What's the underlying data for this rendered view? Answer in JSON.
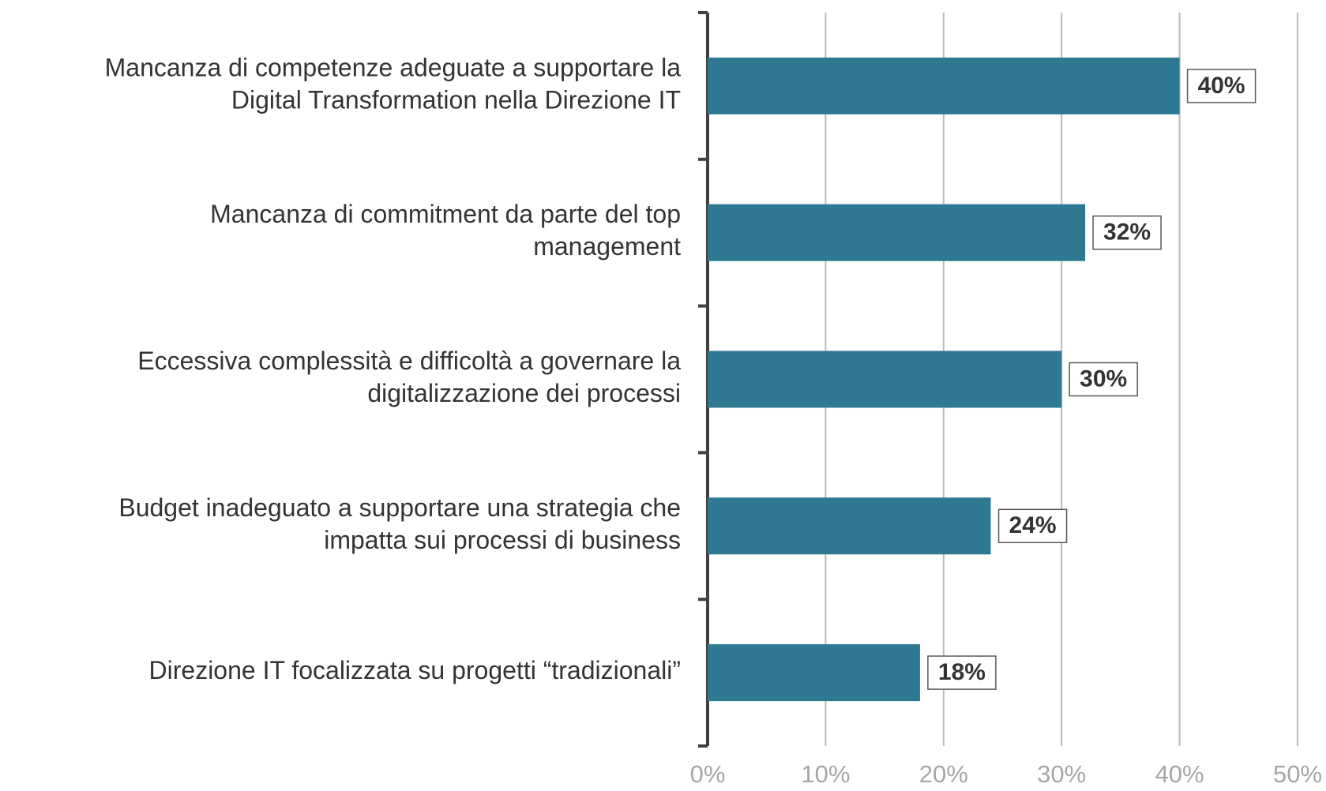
{
  "chart_data": {
    "type": "barh",
    "categories": [
      "Mancanza di competenze adeguate a supportare la\nDigital Transformation nella Direzione IT",
      "Mancanza di commitment da parte del top\nmanagement",
      "Eccessiva complessità e difficoltà a governare la\ndigitalizzazione dei processi",
      "Budget inadeguato a supportare una strategia che\nimpatta sui processi di business",
      "Direzione IT focalizzata su progetti “tradizionali”"
    ],
    "values": [
      40,
      32,
      30,
      24,
      18
    ],
    "value_labels": [
      "40%",
      "32%",
      "30%",
      "24%",
      "18%"
    ],
    "color": "#2e7891",
    "xlim": [
      0,
      50
    ],
    "xticks": [
      {
        "value": 0,
        "label": "0%"
      },
      {
        "value": 10,
        "label": "10%"
      },
      {
        "value": 20,
        "label": "20%"
      },
      {
        "value": 30,
        "label": "30%"
      },
      {
        "value": 40,
        "label": "40%"
      },
      {
        "value": 50,
        "label": "50%"
      }
    ],
    "grid": true
  }
}
